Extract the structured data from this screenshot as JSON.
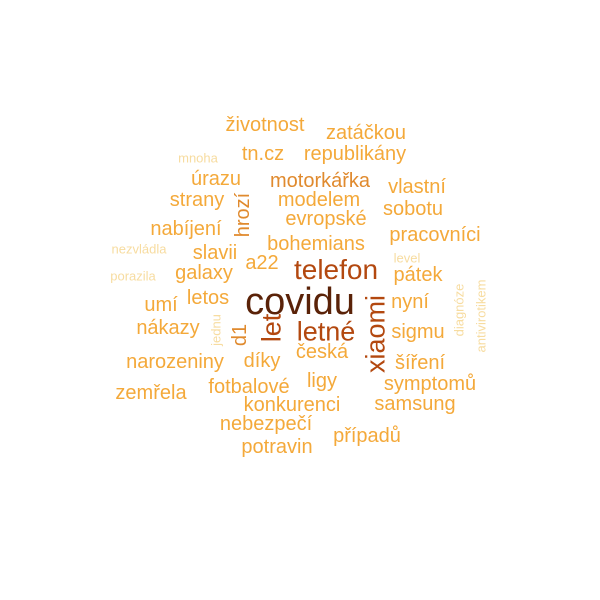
{
  "colors": {
    "darkest": "#5a2208",
    "dark": "#b3480f",
    "medium": "#e08a2e",
    "light": "#f4a93a",
    "pale": "#f7dca0"
  },
  "words": {
    "covidu": "covidu",
    "telefon": "telefon",
    "letne": "letné",
    "xiaomi": "xiaomi",
    "let": "let",
    "zivotnost": "životnost",
    "zatackou": "zatáčkou",
    "tncz": "tn.cz",
    "republikany": "republikány",
    "urazu": "úrazu",
    "motorkarka": "motorkářka",
    "vlastni": "vlastní",
    "strany": "strany",
    "modelem": "modelem",
    "sobotu": "sobotu",
    "evropske": "evropské",
    "nabijeni": "nabíjení",
    "hrozi": "hrozí",
    "pracovnici": "pracovníci",
    "bohemians": "bohemians",
    "slavii": "slavii",
    "a22": "a22",
    "galaxy": "galaxy",
    "patek": "pátek",
    "letos": "letos",
    "umi": "umí",
    "nyni": "nyní",
    "nakazy": "nákazy",
    "sigmu": "sigmu",
    "d1": "d1",
    "ceska": "česká",
    "narozeniny": "narozeniny",
    "diky": "díky",
    "sireni": "šíření",
    "ligy": "ligy",
    "symptomu": "symptomů",
    "zemrela": "zemřela",
    "fotbalove": "fotbalové",
    "konkurenci": "konkurenci",
    "samsung": "samsung",
    "nebezpeci": "nebezpečí",
    "pripadu": "případů",
    "potravin": "potravin",
    "mnoha": "mnoha",
    "nezvladla": "nezvládla",
    "porazila": "porazila",
    "jednu": "jednu",
    "level": "level",
    "diagnoze": "diagnóze",
    "antivirotikem": "antivirotikem"
  }
}
